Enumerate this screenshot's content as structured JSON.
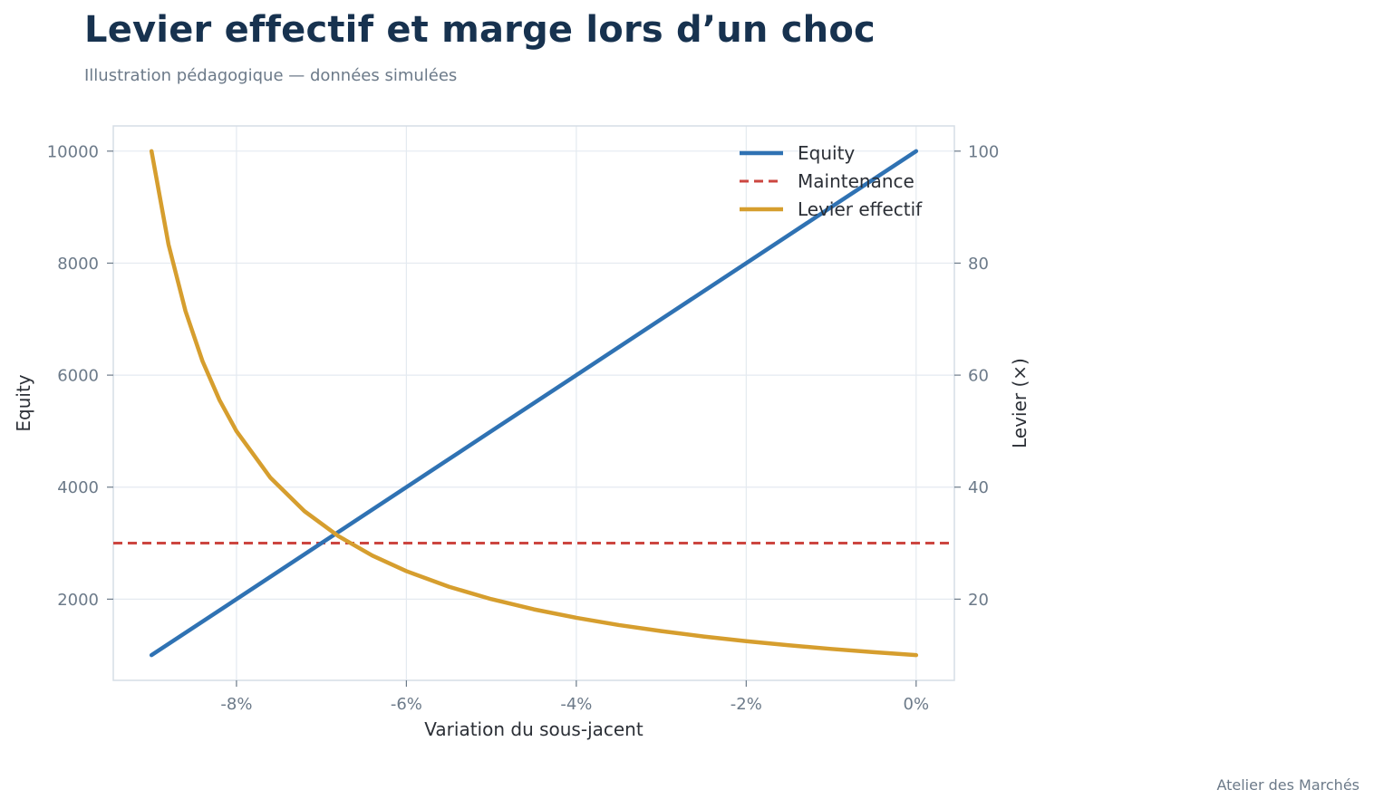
{
  "header": {
    "title": "Levier effectif et marge lors d’un choc",
    "subtitle": "Illustration pédagogique — données simulées"
  },
  "footer": {
    "credit": "Atelier des Marchés"
  },
  "chart_data": {
    "type": "line",
    "title": "Levier effectif et marge lors d’un choc",
    "subtitle": "Illustration pédagogique — données simulées",
    "xlabel": "Variation du sous-jacent",
    "ylabel": "Equity",
    "ylabel_right": "Levier (×)",
    "x_unit": "%",
    "xlim": [
      -9.45,
      0.45
    ],
    "ylim": [
      550,
      10450
    ],
    "ylim_right": [
      5.5,
      104.5
    ],
    "x_ticks": [
      -8,
      -6,
      -4,
      -2,
      0
    ],
    "x_tick_labels": [
      "-8%",
      "-6%",
      "-4%",
      "-2%",
      "0%"
    ],
    "y_ticks": [
      2000,
      4000,
      6000,
      8000,
      10000
    ],
    "y_tick_labels": [
      "2000",
      "4000",
      "6000",
      "8000",
      "10000"
    ],
    "y_ticks_right": [
      20,
      40,
      60,
      80,
      100
    ],
    "y_tick_labels_right": [
      "20",
      "40",
      "60",
      "80",
      "100"
    ],
    "grid": true,
    "legend_position": "top-right",
    "series": [
      {
        "name": "Equity",
        "axis": "left",
        "style": "solid",
        "color": "#2f72b3",
        "x": [
          -9,
          -8,
          -7,
          -6,
          -5,
          -4,
          -3,
          -2,
          -1,
          0
        ],
        "values": [
          1000,
          2000,
          3000,
          4000,
          5000,
          6000,
          7000,
          8000,
          9000,
          10000
        ]
      },
      {
        "name": "Maintenance",
        "axis": "left",
        "style": "dashed",
        "color": "#cc4640",
        "x": [
          -9.45,
          0.45
        ],
        "values": [
          3000,
          3000
        ]
      },
      {
        "name": "Levier effectif",
        "axis": "right",
        "style": "solid",
        "color": "#d69e2e",
        "x": [
          -9,
          -8.8,
          -8.6,
          -8.4,
          -8.2,
          -8,
          -7.6,
          -7.2,
          -6.8,
          -6.4,
          -6,
          -5.5,
          -5,
          -4.5,
          -4,
          -3.5,
          -3,
          -2.5,
          -2,
          -1.5,
          -1,
          -0.5,
          0
        ],
        "values": [
          100,
          83.33,
          71.43,
          62.5,
          55.56,
          50,
          41.67,
          35.71,
          31.25,
          27.78,
          25,
          22.22,
          20,
          18.18,
          16.67,
          15.38,
          14.29,
          13.33,
          12.5,
          11.76,
          11.11,
          10.53,
          10
        ]
      }
    ]
  }
}
